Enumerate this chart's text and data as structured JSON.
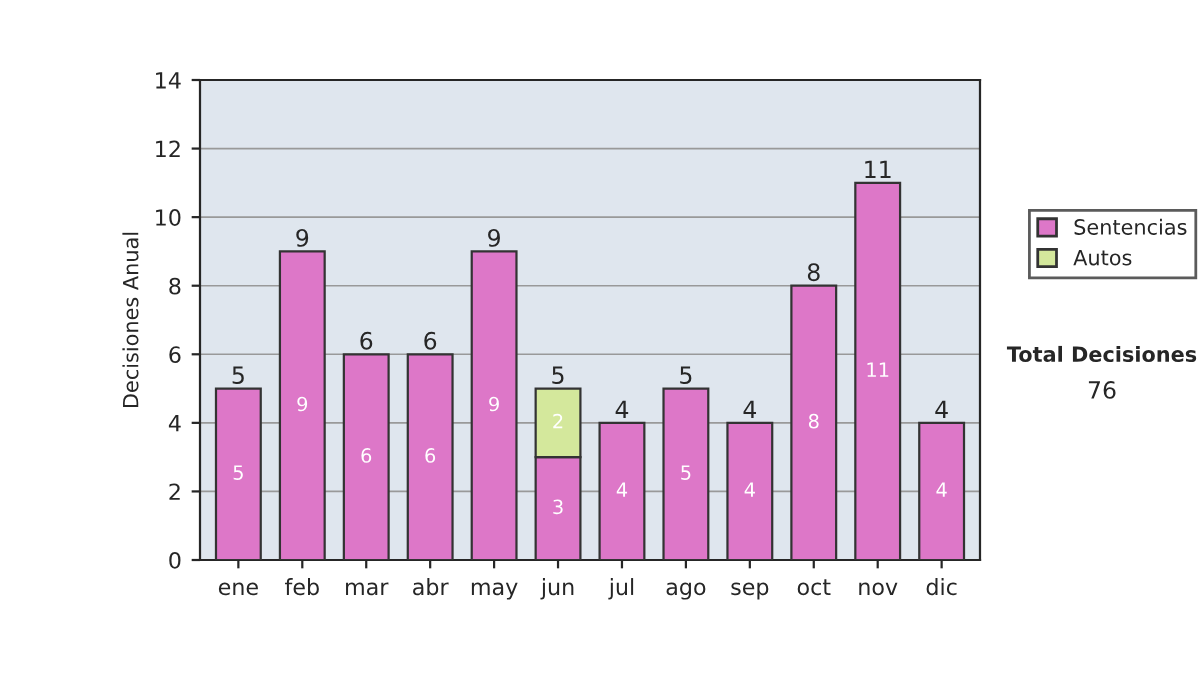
{
  "chart_data": {
    "type": "bar",
    "stacked": true,
    "ylabel": "Decisiones Anual",
    "categories": [
      "ene",
      "feb",
      "mar",
      "abr",
      "may",
      "jun",
      "jul",
      "ago",
      "sep",
      "oct",
      "nov",
      "dic"
    ],
    "series": [
      {
        "name": "Sentencias",
        "color": "#dd77c8",
        "values": [
          5,
          9,
          6,
          6,
          9,
          3,
          4,
          5,
          4,
          8,
          11,
          4
        ],
        "value_labels": [
          "5",
          "9",
          "6",
          "6",
          "9",
          "3",
          "4",
          "5",
          "4",
          "8",
          "11",
          "4"
        ]
      },
      {
        "name": "Autos",
        "color": "#d4e89c",
        "values": [
          null,
          null,
          null,
          null,
          null,
          2,
          null,
          null,
          null,
          null,
          null,
          null
        ],
        "value_labels": [
          null,
          null,
          null,
          null,
          null,
          "2",
          null,
          null,
          null,
          null,
          null,
          null
        ]
      }
    ],
    "totals": [
      "5",
      "9",
      "6",
      "6",
      "9",
      "5",
      "4",
      "5",
      "4",
      "8",
      "11",
      "4"
    ],
    "ylim": [
      0,
      14
    ],
    "yticks": [
      0,
      2,
      4,
      6,
      8,
      10,
      12,
      14
    ],
    "grid": "y",
    "legend": "right",
    "annotations": [
      "Total Decisiones",
      "76"
    ]
  }
}
